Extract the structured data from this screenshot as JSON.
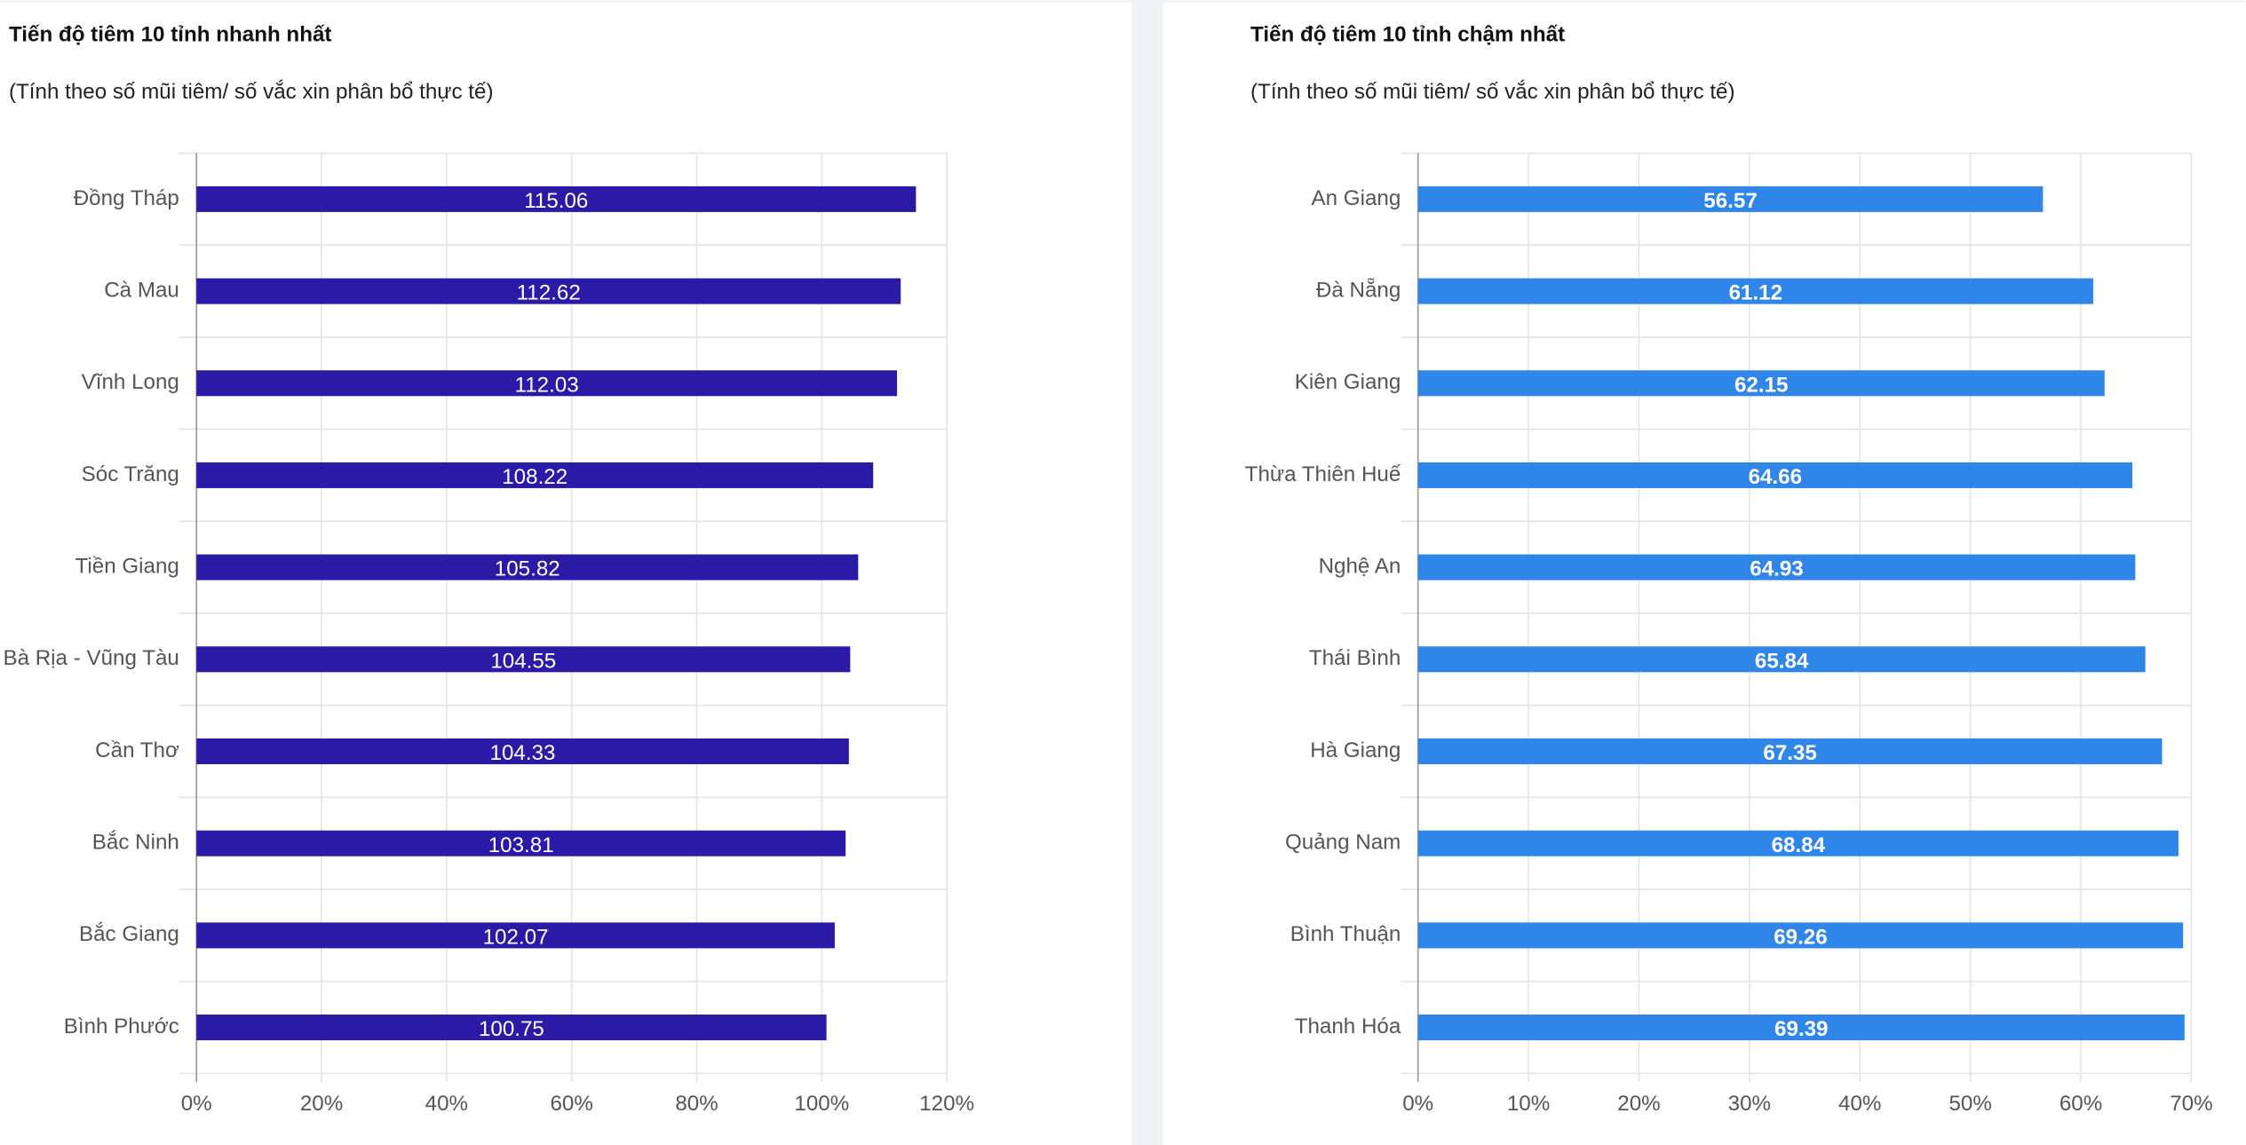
{
  "chart_data": [
    {
      "type": "bar",
      "orientation": "horizontal",
      "title": "Tiến độ tiêm 10 tỉnh nhanh nhất",
      "subtitle": "(Tính theo số mũi tiêm/ số vắc xin phân bổ thực tế)",
      "categories": [
        "Đồng Tháp",
        "Cà Mau",
        "Vĩnh Long",
        "Sóc Trăng",
        "Tiền Giang",
        "Bà Rịa - Vũng Tàu",
        "Cần Thơ",
        "Bắc Ninh",
        "Bắc Giang",
        "Bình Phước"
      ],
      "values": [
        115.06,
        112.62,
        112.03,
        108.22,
        105.82,
        104.55,
        104.33,
        103.81,
        102.07,
        100.75
      ],
      "color": "#2a1aa6",
      "xlim": [
        0,
        120
      ],
      "xticks": [
        {
          "value": 0,
          "label": "0%"
        },
        {
          "value": 20,
          "label": "20%"
        },
        {
          "value": 40,
          "label": "40%"
        },
        {
          "value": 60,
          "label": "60%"
        },
        {
          "value": 80,
          "label": "80%"
        },
        {
          "value": 100,
          "label": "100%"
        },
        {
          "value": 120,
          "label": "120%"
        }
      ],
      "grid": true
    },
    {
      "type": "bar",
      "orientation": "horizontal",
      "title": "Tiến độ tiêm 10 tỉnh chậm nhất",
      "subtitle": "(Tính theo số mũi tiêm/ số vắc xin phân bổ thực tế)",
      "categories": [
        "An Giang",
        "Đà Nẵng",
        "Kiên Giang",
        "Thừa Thiên Huế",
        "Nghệ An",
        "Thái Bình",
        "Hà Giang",
        "Quảng Nam",
        "Bình Thuận",
        "Thanh Hóa"
      ],
      "values": [
        56.57,
        61.12,
        62.15,
        64.66,
        64.93,
        65.84,
        67.35,
        68.84,
        69.26,
        69.39
      ],
      "color": "#2f86e8",
      "xlim": [
        0,
        70
      ],
      "xticks": [
        {
          "value": 0,
          "label": "0%"
        },
        {
          "value": 10,
          "label": "10%"
        },
        {
          "value": 20,
          "label": "20%"
        },
        {
          "value": 30,
          "label": "30%"
        },
        {
          "value": 40,
          "label": "40%"
        },
        {
          "value": 50,
          "label": "50%"
        },
        {
          "value": 60,
          "label": "60%"
        },
        {
          "value": 70,
          "label": "70%"
        }
      ],
      "grid": true
    }
  ]
}
